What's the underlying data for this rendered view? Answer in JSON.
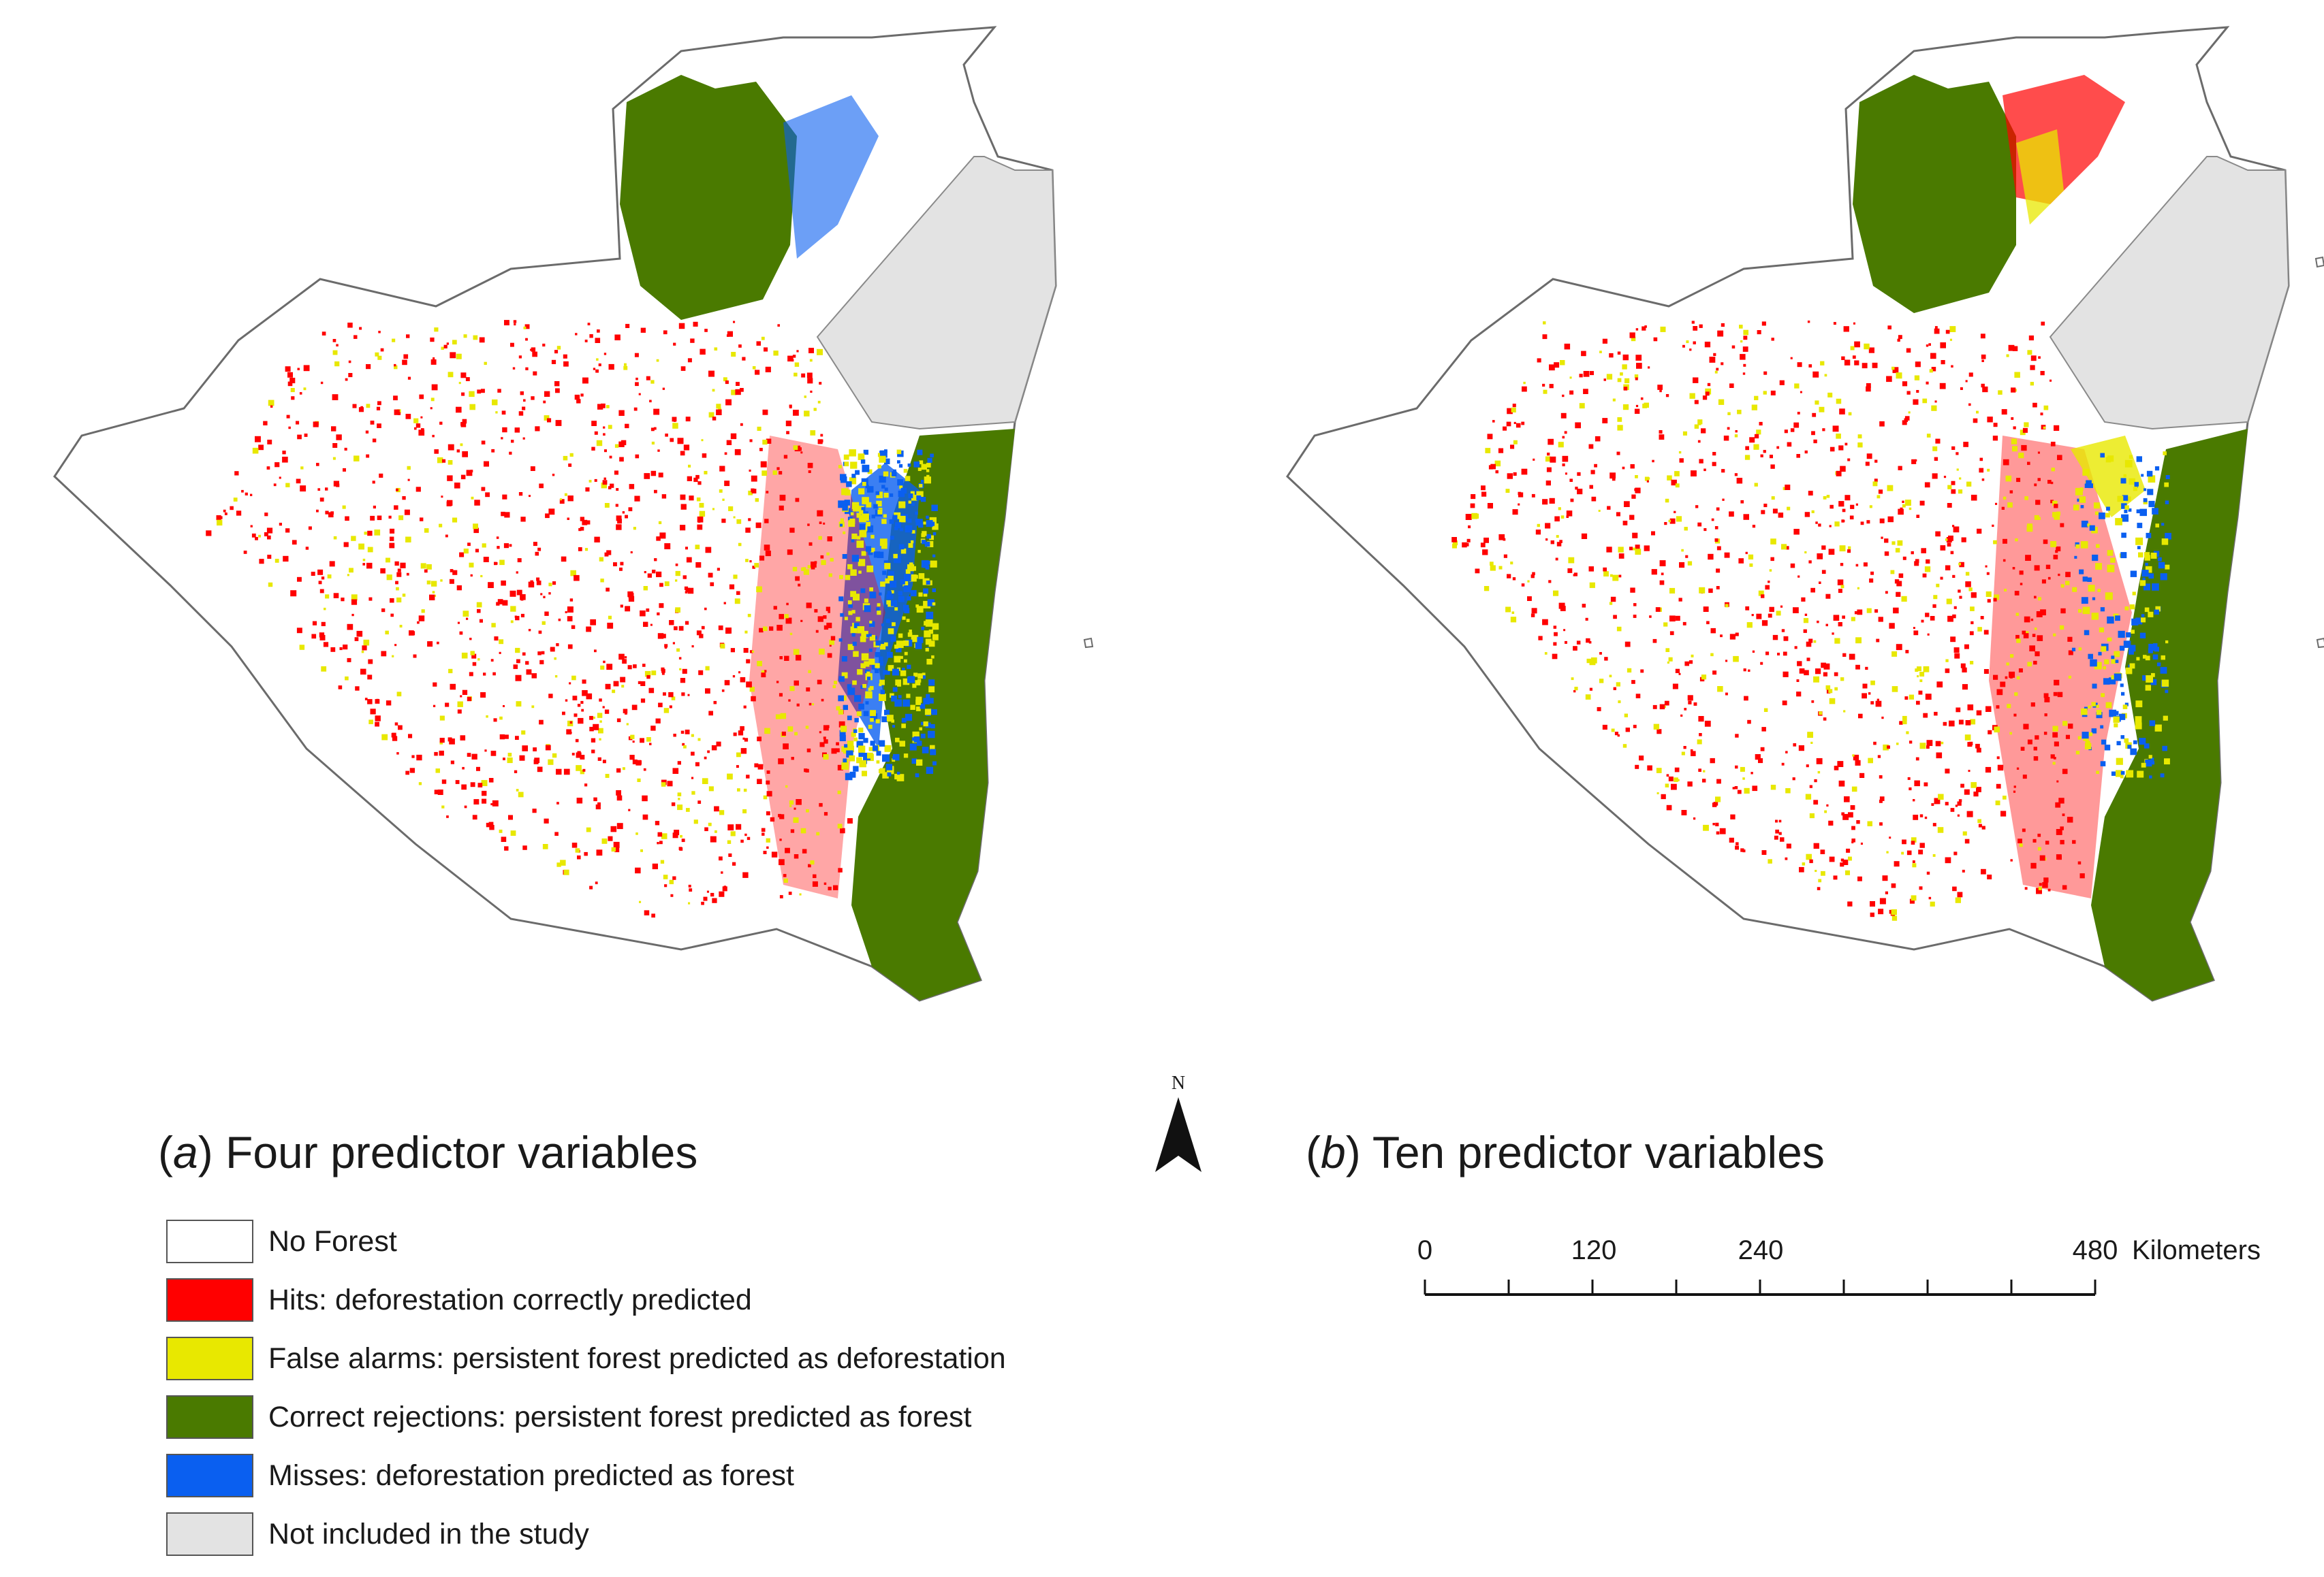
{
  "figure": {
    "panels": [
      {
        "id": "a",
        "letter": "a",
        "title": "Four predictor variables"
      },
      {
        "id": "b",
        "letter": "b",
        "title": "Ten predictor variables"
      }
    ]
  },
  "legend": {
    "items": [
      {
        "label": "No Forest",
        "color": "#ffffff"
      },
      {
        "label": "Hits: deforestation correctly predicted",
        "color": "#ff0000"
      },
      {
        "label": "False alarms: persistent forest predicted as deforestation",
        "color": "#e8e800"
      },
      {
        "label": "Correct rejections: persistent forest predicted as forest",
        "color": "#4a7a00"
      },
      {
        "label": "Misses: deforestation predicted as forest",
        "color": "#0a5ff0"
      },
      {
        "label": "Not included in the study",
        "color": "#e3e3e3"
      }
    ]
  },
  "north_arrow": {
    "label": "N"
  },
  "scale_bar": {
    "ticks": [
      "0",
      "120",
      "240",
      "480"
    ],
    "unit": "Kilometers"
  },
  "colors": {
    "outline": "#6b6b6b",
    "hits": "#ff0000",
    "false_alarms": "#e8e800",
    "correct_rejections": "#4a7a00",
    "misses": "#0a5ff0",
    "not_included": "#e3e3e3"
  }
}
